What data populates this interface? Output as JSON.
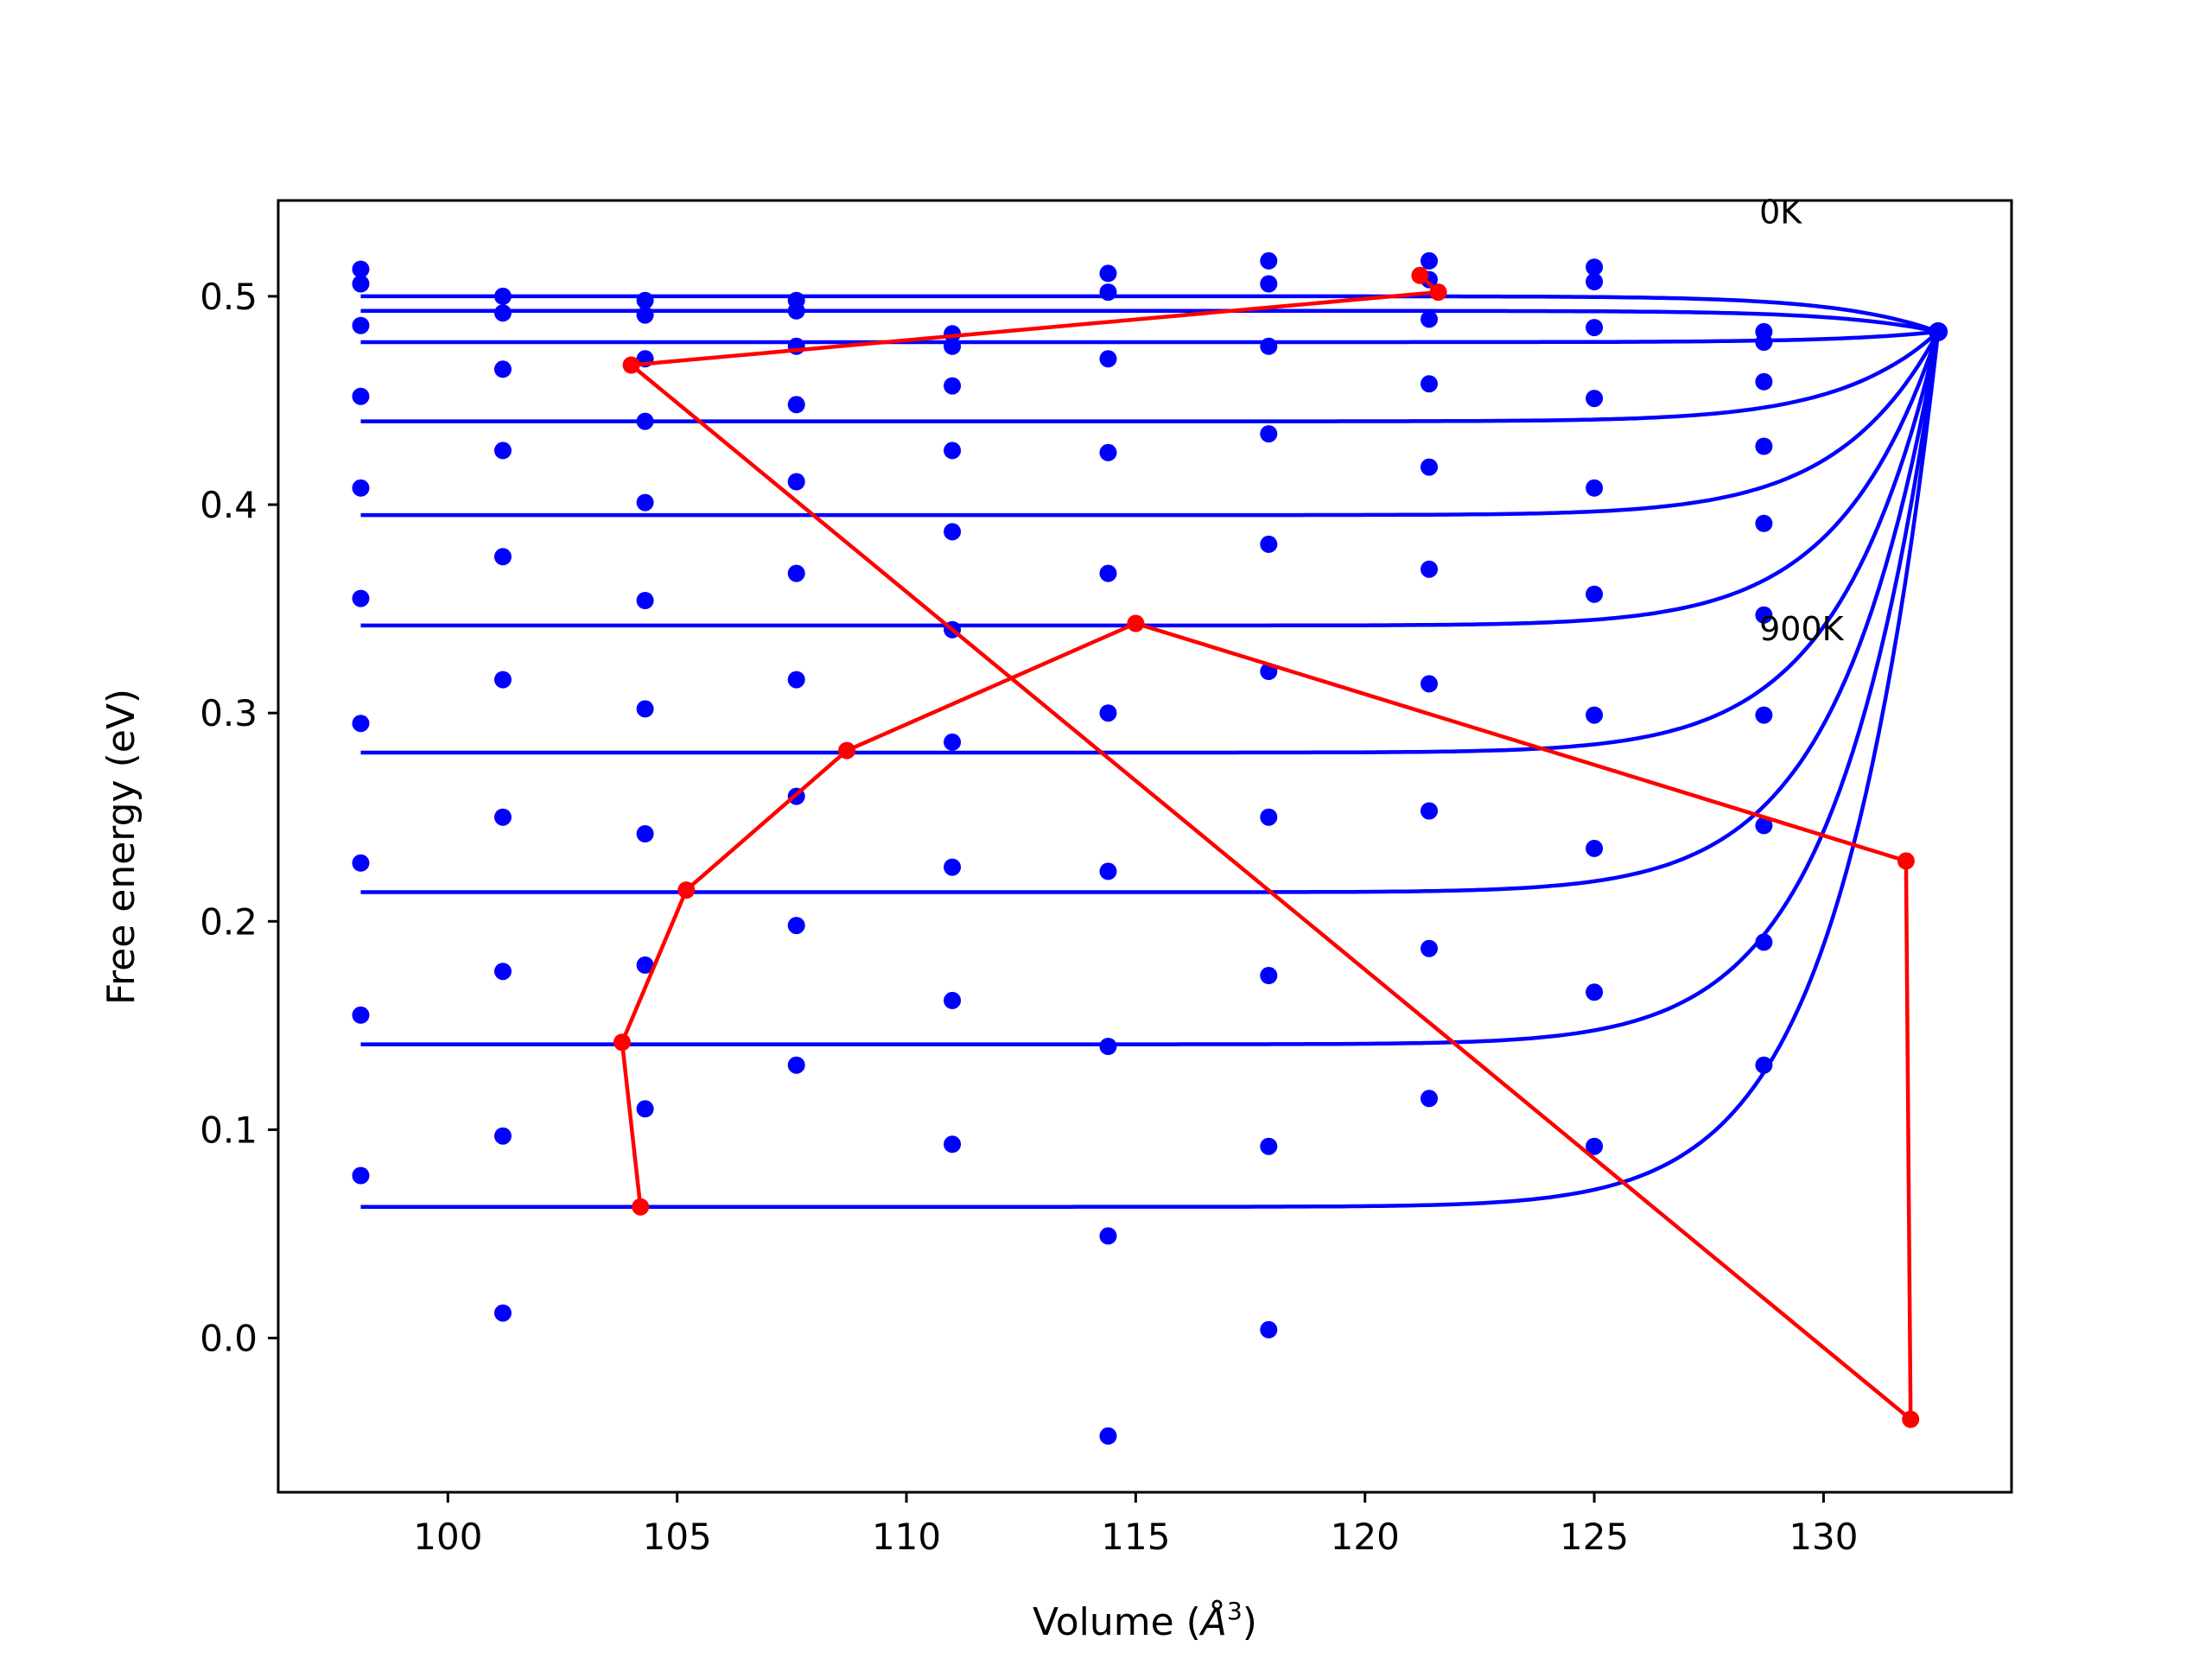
{
  "chart_data": {
    "type": "line",
    "xlabel": "Volume (",
    "xlabel_unit": "Å",
    "xlabel_exp": "3",
    "xlabel_close": ")",
    "ylabel": "Free energy (eV)",
    "xlim": [
      96.3,
      134.1
    ],
    "ylim": [
      -0.074,
      0.546
    ],
    "xticks": [
      100,
      105,
      110,
      115,
      120,
      125,
      130
    ],
    "xtick_labels": [
      "100",
      "105",
      "110",
      "115",
      "120",
      "125",
      "130"
    ],
    "yticks": [
      0.0,
      0.1,
      0.2,
      0.3,
      0.4,
      0.5
    ],
    "ytick_labels": [
      "0.0",
      "0.1",
      "0.2",
      "0.3",
      "0.4",
      "0.5"
    ],
    "grid": false,
    "annotations": [
      {
        "text": "0K",
        "x": 128.6,
        "y": 0.535
      },
      {
        "text": "900K",
        "x": 128.6,
        "y": 0.335
      }
    ],
    "colors": {
      "points": "#0000ff",
      "fits": "#0000ff",
      "minima": "#ff0000"
    },
    "point_volumes": [
      98.1,
      101.2,
      104.3,
      107.6,
      111.0,
      114.4,
      117.9,
      121.4,
      125.0,
      128.7
    ],
    "point_energies": [
      [
        0.513,
        0.506,
        0.486,
        0.452,
        0.408,
        0.355,
        0.295,
        0.228,
        0.155,
        0.078
      ],
      [
        0.5,
        0.492,
        0.465,
        0.426,
        0.375,
        0.316,
        0.25,
        0.176,
        0.097,
        0.012
      ],
      [
        0.498,
        0.491,
        0.47,
        0.44,
        0.401,
        0.354,
        0.302,
        0.242,
        0.179,
        0.11
      ],
      [
        0.498,
        0.493,
        0.476,
        0.448,
        0.411,
        0.367,
        0.316,
        0.26,
        0.198,
        0.131
      ],
      [
        0.482,
        0.476,
        0.457,
        0.426,
        0.387,
        0.34,
        0.286,
        0.226,
        0.162,
        0.093
      ],
      [
        0.511,
        0.502,
        0.47,
        0.425,
        0.367,
        0.3,
        0.224,
        0.14,
        0.049,
        -0.047
      ],
      [
        0.517,
        0.506,
        0.476,
        0.434,
        0.381,
        0.32,
        0.25,
        0.174,
        0.092,
        0.004
      ],
      [
        0.517,
        0.508,
        0.489,
        0.458,
        0.418,
        0.369,
        0.314,
        0.253,
        0.187,
        0.115
      ],
      [
        0.514,
        0.507,
        0.485,
        0.451,
        0.408,
        0.357,
        0.299,
        0.235,
        0.166,
        0.092
      ],
      [
        0.483,
        0.478,
        0.459,
        0.428,
        0.391,
        0.347,
        0.299,
        0.246,
        0.19,
        0.131
      ]
    ],
    "convergence_point": {
      "x": 132.5,
      "y": 0.483
    },
    "series": [
      {
        "plateau": 0.493,
        "x_start": 98.1
      },
      {
        "plateau": 0.5,
        "x_start": 98.1
      },
      {
        "plateau": 0.478,
        "x_start": 98.1
      },
      {
        "plateau": 0.44,
        "x_start": 98.1
      },
      {
        "plateau": 0.395,
        "x_start": 98.1
      },
      {
        "plateau": 0.342,
        "x_start": 98.1
      },
      {
        "plateau": 0.281,
        "x_start": 98.1
      },
      {
        "plateau": 0.214,
        "x_start": 98.1
      },
      {
        "plateau": 0.141,
        "x_start": 98.1
      },
      {
        "plateau": 0.063,
        "x_start": 98.1
      }
    ],
    "minima_line": {
      "x": [
        121.2,
        121.6,
        104.0,
        131.9,
        131.8,
        115.0,
        108.7,
        105.2,
        103.8,
        104.2
      ],
      "y": [
        0.51,
        0.502,
        0.467,
        -0.039,
        0.229,
        0.343,
        0.282,
        0.215,
        0.142,
        0.063
      ]
    }
  }
}
